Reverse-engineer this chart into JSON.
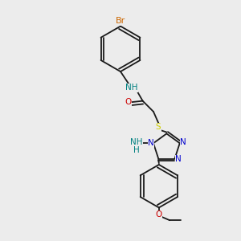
{
  "bg_color": "#ececec",
  "bond_color": "#1a1a1a",
  "atom_colors": {
    "Br": "#cc6600",
    "N": "#0000cc",
    "NH": "#008080",
    "O": "#cc0000",
    "S": "#cccc00",
    "C": "#1a1a1a"
  },
  "font_size": 7.5,
  "bond_width": 1.3,
  "dbo": 0.013
}
